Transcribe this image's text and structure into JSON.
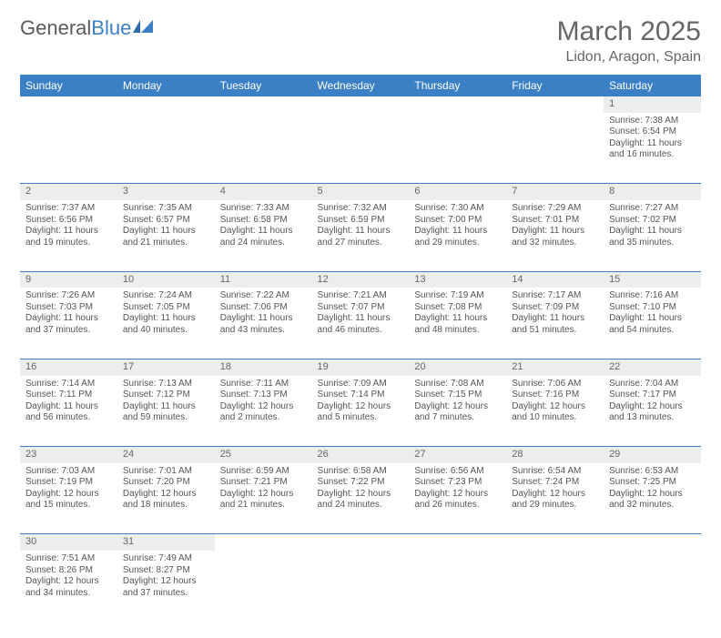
{
  "logo": {
    "text1": "General",
    "text2": "Blue"
  },
  "title": "March 2025",
  "location": "Lidon, Aragon, Spain",
  "colors": {
    "header_bg": "#3b7fc4",
    "header_text": "#ffffff",
    "daynum_bg": "#eceded",
    "rule": "#3b7fc4",
    "body_text": "#555555",
    "title_text": "#666666"
  },
  "weekdays": [
    "Sunday",
    "Monday",
    "Tuesday",
    "Wednesday",
    "Thursday",
    "Friday",
    "Saturday"
  ],
  "weeks": [
    {
      "nums": [
        "",
        "",
        "",
        "",
        "",
        "",
        "1"
      ],
      "cells": [
        null,
        null,
        null,
        null,
        null,
        null,
        {
          "sunrise": "7:38 AM",
          "sunset": "6:54 PM",
          "day": "11 hours and 16 minutes."
        }
      ]
    },
    {
      "nums": [
        "2",
        "3",
        "4",
        "5",
        "6",
        "7",
        "8"
      ],
      "cells": [
        {
          "sunrise": "7:37 AM",
          "sunset": "6:56 PM",
          "day": "11 hours and 19 minutes."
        },
        {
          "sunrise": "7:35 AM",
          "sunset": "6:57 PM",
          "day": "11 hours and 21 minutes."
        },
        {
          "sunrise": "7:33 AM",
          "sunset": "6:58 PM",
          "day": "11 hours and 24 minutes."
        },
        {
          "sunrise": "7:32 AM",
          "sunset": "6:59 PM",
          "day": "11 hours and 27 minutes."
        },
        {
          "sunrise": "7:30 AM",
          "sunset": "7:00 PM",
          "day": "11 hours and 29 minutes."
        },
        {
          "sunrise": "7:29 AM",
          "sunset": "7:01 PM",
          "day": "11 hours and 32 minutes."
        },
        {
          "sunrise": "7:27 AM",
          "sunset": "7:02 PM",
          "day": "11 hours and 35 minutes."
        }
      ]
    },
    {
      "nums": [
        "9",
        "10",
        "11",
        "12",
        "13",
        "14",
        "15"
      ],
      "cells": [
        {
          "sunrise": "7:26 AM",
          "sunset": "7:03 PM",
          "day": "11 hours and 37 minutes."
        },
        {
          "sunrise": "7:24 AM",
          "sunset": "7:05 PM",
          "day": "11 hours and 40 minutes."
        },
        {
          "sunrise": "7:22 AM",
          "sunset": "7:06 PM",
          "day": "11 hours and 43 minutes."
        },
        {
          "sunrise": "7:21 AM",
          "sunset": "7:07 PM",
          "day": "11 hours and 46 minutes."
        },
        {
          "sunrise": "7:19 AM",
          "sunset": "7:08 PM",
          "day": "11 hours and 48 minutes."
        },
        {
          "sunrise": "7:17 AM",
          "sunset": "7:09 PM",
          "day": "11 hours and 51 minutes."
        },
        {
          "sunrise": "7:16 AM",
          "sunset": "7:10 PM",
          "day": "11 hours and 54 minutes."
        }
      ]
    },
    {
      "nums": [
        "16",
        "17",
        "18",
        "19",
        "20",
        "21",
        "22"
      ],
      "cells": [
        {
          "sunrise": "7:14 AM",
          "sunset": "7:11 PM",
          "day": "11 hours and 56 minutes."
        },
        {
          "sunrise": "7:13 AM",
          "sunset": "7:12 PM",
          "day": "11 hours and 59 minutes."
        },
        {
          "sunrise": "7:11 AM",
          "sunset": "7:13 PM",
          "day": "12 hours and 2 minutes."
        },
        {
          "sunrise": "7:09 AM",
          "sunset": "7:14 PM",
          "day": "12 hours and 5 minutes."
        },
        {
          "sunrise": "7:08 AM",
          "sunset": "7:15 PM",
          "day": "12 hours and 7 minutes."
        },
        {
          "sunrise": "7:06 AM",
          "sunset": "7:16 PM",
          "day": "12 hours and 10 minutes."
        },
        {
          "sunrise": "7:04 AM",
          "sunset": "7:17 PM",
          "day": "12 hours and 13 minutes."
        }
      ]
    },
    {
      "nums": [
        "23",
        "24",
        "25",
        "26",
        "27",
        "28",
        "29"
      ],
      "cells": [
        {
          "sunrise": "7:03 AM",
          "sunset": "7:19 PM",
          "day": "12 hours and 15 minutes."
        },
        {
          "sunrise": "7:01 AM",
          "sunset": "7:20 PM",
          "day": "12 hours and 18 minutes."
        },
        {
          "sunrise": "6:59 AM",
          "sunset": "7:21 PM",
          "day": "12 hours and 21 minutes."
        },
        {
          "sunrise": "6:58 AM",
          "sunset": "7:22 PM",
          "day": "12 hours and 24 minutes."
        },
        {
          "sunrise": "6:56 AM",
          "sunset": "7:23 PM",
          "day": "12 hours and 26 minutes."
        },
        {
          "sunrise": "6:54 AM",
          "sunset": "7:24 PM",
          "day": "12 hours and 29 minutes."
        },
        {
          "sunrise": "6:53 AM",
          "sunset": "7:25 PM",
          "day": "12 hours and 32 minutes."
        }
      ]
    },
    {
      "nums": [
        "30",
        "31",
        "",
        "",
        "",
        "",
        ""
      ],
      "cells": [
        {
          "sunrise": "7:51 AM",
          "sunset": "8:26 PM",
          "day": "12 hours and 34 minutes."
        },
        {
          "sunrise": "7:49 AM",
          "sunset": "8:27 PM",
          "day": "12 hours and 37 minutes."
        },
        null,
        null,
        null,
        null,
        null
      ]
    }
  ],
  "labels": {
    "sunrise": "Sunrise: ",
    "sunset": "Sunset: ",
    "daylight": "Daylight: "
  }
}
